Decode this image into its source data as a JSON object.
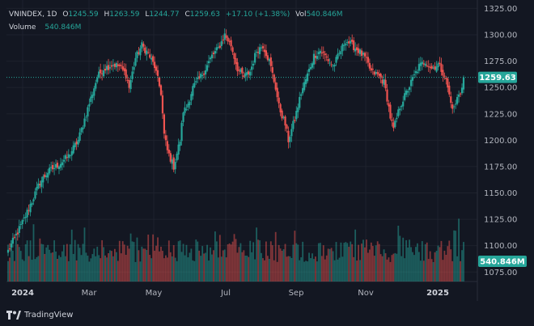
{
  "header": {
    "symbol": "VNINDEX",
    "interval": "1D",
    "open_label": "O",
    "open": "1245.59",
    "high_label": "H",
    "high": "1263.59",
    "low_label": "L",
    "low": "1244.77",
    "close_label": "C",
    "close": "1259.63",
    "change": "+17.10 (+1.38%)",
    "vol_label": "Vol",
    "vol": "540.846M"
  },
  "volume_legend": {
    "label": "Volume",
    "value": "540.846M"
  },
  "price_badge": "1259.63",
  "volume_badge": "540.846M",
  "brand": "TradingView",
  "colors": {
    "up": "#26a69a",
    "down": "#ef5350",
    "background": "#131722",
    "grid": "#1e222d",
    "text": "#b2b5be",
    "badge": "#26a69a"
  },
  "chart_data": {
    "type": "candlestick",
    "x_tick_labels": [
      "2024",
      "Mar",
      "May",
      "Jul",
      "Sep",
      "Nov",
      "2025"
    ],
    "y_tick_labels": [
      "1075.00",
      "1100.00",
      "1125.00",
      "1150.00",
      "1175.00",
      "1200.00",
      "1225.00",
      "1250.00",
      "1275.00",
      "1300.00",
      "1325.00"
    ],
    "ylim": [
      1066,
      1333
    ],
    "last_close": 1259.63,
    "close_trajectory": [
      [
        0,
        1095
      ],
      [
        10,
        1125
      ],
      [
        20,
        1160
      ],
      [
        25,
        1170
      ],
      [
        30,
        1175
      ],
      [
        38,
        1185
      ],
      [
        44,
        1200
      ],
      [
        50,
        1230
      ],
      [
        56,
        1260
      ],
      [
        60,
        1268
      ],
      [
        66,
        1272
      ],
      [
        70,
        1270
      ],
      [
        74,
        1262
      ],
      [
        76,
        1250
      ],
      [
        80,
        1278
      ],
      [
        84,
        1290
      ],
      [
        88,
        1282
      ],
      [
        92,
        1270
      ],
      [
        96,
        1245
      ],
      [
        98,
        1205
      ],
      [
        100,
        1190
      ],
      [
        104,
        1175
      ],
      [
        108,
        1200
      ],
      [
        110,
        1228
      ],
      [
        112,
        1230
      ],
      [
        116,
        1250
      ],
      [
        120,
        1258
      ],
      [
        124,
        1268
      ],
      [
        128,
        1280
      ],
      [
        132,
        1287
      ],
      [
        136,
        1300
      ],
      [
        140,
        1290
      ],
      [
        144,
        1268
      ],
      [
        148,
        1260
      ],
      [
        152,
        1265
      ],
      [
        156,
        1285
      ],
      [
        160,
        1290
      ],
      [
        164,
        1275
      ],
      [
        168,
        1250
      ],
      [
        170,
        1232
      ],
      [
        174,
        1215
      ],
      [
        176,
        1200
      ],
      [
        180,
        1220
      ],
      [
        184,
        1245
      ],
      [
        188,
        1262
      ],
      [
        192,
        1280
      ],
      [
        196,
        1285
      ],
      [
        200,
        1278
      ],
      [
        204,
        1270
      ],
      [
        208,
        1282
      ],
      [
        212,
        1295
      ],
      [
        216,
        1290
      ],
      [
        220,
        1285
      ],
      [
        224,
        1278
      ],
      [
        228,
        1265
      ],
      [
        232,
        1262
      ],
      [
        236,
        1255
      ],
      [
        238,
        1240
      ],
      [
        240,
        1222
      ],
      [
        242,
        1210
      ],
      [
        246,
        1232
      ],
      [
        250,
        1245
      ],
      [
        254,
        1258
      ],
      [
        258,
        1270
      ],
      [
        262,
        1275
      ],
      [
        266,
        1268
      ],
      [
        270,
        1272
      ],
      [
        274,
        1262
      ],
      [
        276,
        1250
      ],
      [
        278,
        1235
      ],
      [
        280,
        1230
      ],
      [
        282,
        1240
      ],
      [
        284,
        1245
      ],
      [
        286,
        1260
      ]
    ],
    "volume_level_M": 540.846,
    "grid": true,
    "legend_placement": "top-left"
  }
}
